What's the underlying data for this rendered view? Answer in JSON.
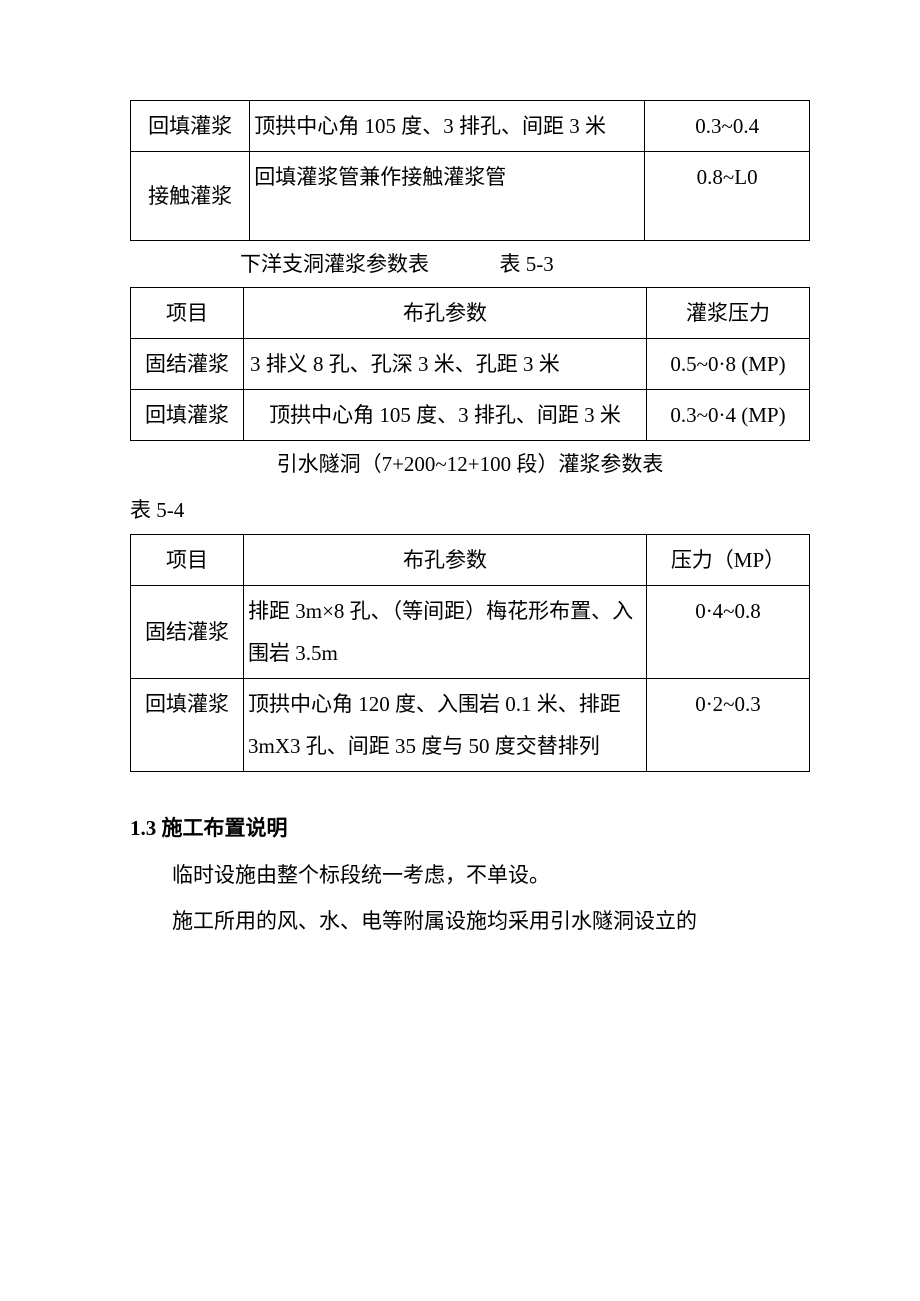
{
  "table1": {
    "rows": [
      {
        "c0": "回填灌浆",
        "c1": "顶拱中心角 105 度、3 排孔、间距 3 米",
        "c2": "0.3~0.4"
      },
      {
        "c0": "接触灌浆",
        "c1": "回填灌浆管兼作接触灌浆管",
        "c2": "0.8~L0"
      }
    ]
  },
  "caption1": {
    "title": "下洋支洞灌浆参数表",
    "label": "表 5-3"
  },
  "table2": {
    "header": {
      "c0": "项目",
      "c1": "布孔参数",
      "c2": "灌浆压力"
    },
    "rows": [
      {
        "c0": "固结灌浆",
        "c1": "3 排义 8 孔、孔深 3 米、孔距 3 米",
        "c2": "0.5~0·8 (MP)"
      },
      {
        "c0": "回填灌浆",
        "c1": "顶拱中心角 105 度、3 排孔、间距 3 米",
        "c2": "0.3~0·4 (MP)"
      }
    ]
  },
  "caption2": {
    "title": "引水隧洞（7+200~12+100 段）灌浆参数表"
  },
  "table3_label": "表 5-4",
  "table3": {
    "header": {
      "c0": "项目",
      "c1": "布孔参数",
      "c2": "压力（MP）"
    },
    "rows": [
      {
        "c0": "固结灌浆",
        "c1": "排距 3m×8 孔、（等间距）梅花形布置、入围岩 3.5m",
        "c2": "0·4~0.8"
      },
      {
        "c0": "回填灌浆",
        "c1": "顶拱中心角 120 度、入围岩 0.1 米、排距 3mX3 孔、间距 35 度与 50 度交替排列",
        "c2": "0·2~0.3"
      }
    ]
  },
  "section": {
    "num": "1.3",
    "title": "施工布置说明",
    "p1": "临时设施由整个标段统一考虑，不单设。",
    "p2": "施工所用的风、水、电等附属设施均采用引水隧洞设立的"
  }
}
